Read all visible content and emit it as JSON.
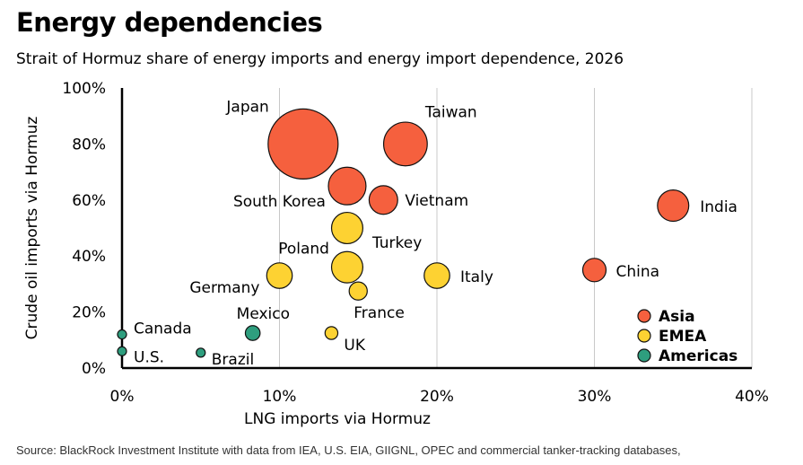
{
  "header": {
    "title": "Energy dependencies",
    "subtitle": "Strait of Hormuz share of energy imports and energy import dependence, 2026"
  },
  "footer": {
    "source": "Source: BlackRock Investment Institute with data from IEA, U.S. EIA, GIIGNL, OPEC and commercial tanker-tracking databases,"
  },
  "colors": {
    "Asia": "#f5603e",
    "EMEA": "#fdd232",
    "Americas": "#2e9e7e",
    "grid": "#c8c8c8",
    "axis": "#000000"
  },
  "chart_data": {
    "type": "scatter",
    "title": "Energy dependencies",
    "subtitle": "Strait of Hormuz share of energy imports and energy import dependence, 2026",
    "xlabel": "LNG imports via Hormuz",
    "ylabel": "Crude oil imports via Hormuz",
    "xlim": [
      0,
      40
    ],
    "ylim": [
      0,
      100
    ],
    "x_ticks": [
      0,
      10,
      20,
      30,
      40
    ],
    "x_tick_labels": [
      "0%",
      "10%",
      "20%",
      "30%",
      "40%"
    ],
    "y_ticks": [
      0,
      20,
      40,
      60,
      80,
      100
    ],
    "y_tick_labels": [
      "0%",
      "20%",
      "40%",
      "60%",
      "80%",
      "100%"
    ],
    "grid": "vertical",
    "legend_position": "bottom-right",
    "legend": [
      "Asia",
      "EMEA",
      "Americas"
    ],
    "bubble_size_note": "bubble size shows energy import dependence",
    "points": [
      {
        "label": "Japan",
        "group": "Asia",
        "x": 11.5,
        "y": 80,
        "size": 9
      },
      {
        "label": "Taiwan",
        "group": "Asia",
        "x": 18,
        "y": 80,
        "size": 3.5
      },
      {
        "label": "South Korea",
        "group": "Asia",
        "x": 14.3,
        "y": 65,
        "size": 2.6
      },
      {
        "label": "Vietnam",
        "group": "Asia",
        "x": 16.6,
        "y": 60,
        "size": 1.5
      },
      {
        "label": "India",
        "group": "Asia",
        "x": 35,
        "y": 58,
        "size": 1.8
      },
      {
        "label": "China",
        "group": "Asia",
        "x": 30,
        "y": 35,
        "size": 1
      },
      {
        "label": "Turkey",
        "group": "EMEA",
        "x": 14.3,
        "y": 50,
        "size": 1.8
      },
      {
        "label": "Poland",
        "group": "EMEA",
        "x": 14.3,
        "y": 36,
        "size": 1.8
      },
      {
        "label": "Germany",
        "group": "EMEA",
        "x": 10,
        "y": 33,
        "size": 1.2
      },
      {
        "label": "Italy",
        "group": "EMEA",
        "x": 20,
        "y": 33,
        "size": 1.2
      },
      {
        "label": "France",
        "group": "EMEA",
        "x": 15,
        "y": 27.5,
        "size": 0.6
      },
      {
        "label": "UK",
        "group": "EMEA",
        "x": 13.3,
        "y": 12.5,
        "size": 0.3
      },
      {
        "label": "Mexico",
        "group": "Americas",
        "x": 8.3,
        "y": 12.5,
        "size": 0.4
      },
      {
        "label": "Canada",
        "group": "Americas",
        "x": 0,
        "y": 12,
        "size": 0.15
      },
      {
        "label": "U.S.",
        "group": "Americas",
        "x": 0,
        "y": 6,
        "size": 0.1
      },
      {
        "label": "Brazil",
        "group": "Americas",
        "x": 5,
        "y": 5.5,
        "size": 0.15
      }
    ]
  }
}
